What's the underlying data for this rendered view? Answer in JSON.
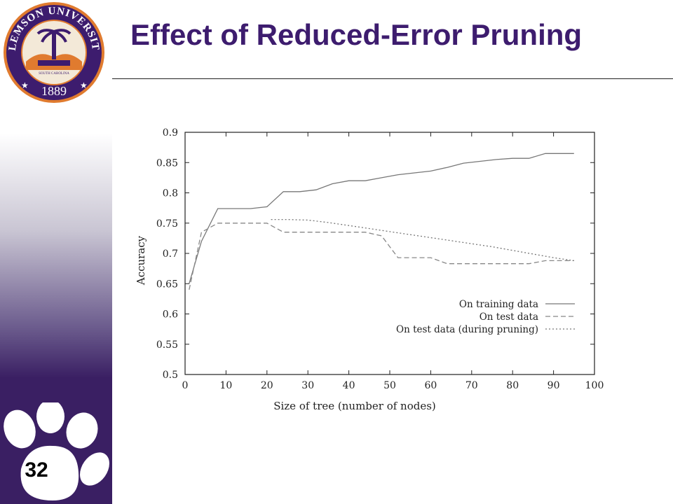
{
  "slide": {
    "title": "Effect of Reduced-Error Pruning",
    "number": "32",
    "logo": {
      "ring_text": "CLEMSON UNIVERSITY",
      "inner_text": "SOUTH CAROLINA",
      "year": "1889"
    },
    "colors": {
      "purple": "#3d1c6e",
      "orange": "#e07b2f"
    }
  },
  "chart_data": {
    "type": "line",
    "title": "",
    "xlabel": "Size of tree (number of nodes)",
    "ylabel": "Accuracy",
    "xlim": [
      0,
      100
    ],
    "ylim": [
      0.5,
      0.9
    ],
    "xticks": [
      "0",
      "10",
      "20",
      "30",
      "40",
      "50",
      "60",
      "70",
      "80",
      "90",
      "100"
    ],
    "yticks": [
      "0.5",
      "0.55",
      "0.6",
      "0.65",
      "0.7",
      "0.75",
      "0.8",
      "0.85",
      "0.9"
    ],
    "grid": false,
    "legend_position": "bottom-right",
    "series": [
      {
        "name": "On training data",
        "style": "solid",
        "x": [
          1,
          4,
          8,
          12,
          16,
          20,
          24,
          28,
          32,
          36,
          40,
          44,
          48,
          52,
          56,
          60,
          64,
          68,
          72,
          76,
          80,
          84,
          88,
          92,
          95
        ],
        "y": [
          0.65,
          0.72,
          0.774,
          0.774,
          0.774,
          0.777,
          0.802,
          0.802,
          0.805,
          0.815,
          0.82,
          0.82,
          0.825,
          0.83,
          0.833,
          0.836,
          0.842,
          0.849,
          0.852,
          0.855,
          0.857,
          0.857,
          0.865,
          0.865,
          0.865
        ]
      },
      {
        "name": "On test data",
        "style": "dashed",
        "x": [
          1,
          4,
          8,
          12,
          16,
          20,
          24,
          28,
          32,
          36,
          40,
          44,
          48,
          52,
          56,
          60,
          64,
          68,
          72,
          76,
          80,
          84,
          88,
          92,
          95
        ],
        "y": [
          0.64,
          0.735,
          0.75,
          0.75,
          0.75,
          0.75,
          0.735,
          0.735,
          0.735,
          0.735,
          0.735,
          0.735,
          0.729,
          0.693,
          0.693,
          0.693,
          0.683,
          0.683,
          0.683,
          0.683,
          0.683,
          0.683,
          0.688,
          0.688,
          0.688
        ]
      },
      {
        "name": "On test data (during pruning)",
        "style": "dotted",
        "x": [
          21,
          25,
          30,
          35,
          40,
          45,
          50,
          55,
          60,
          65,
          70,
          75,
          80,
          85,
          90,
          95
        ],
        "y": [
          0.756,
          0.756,
          0.755,
          0.751,
          0.746,
          0.741,
          0.736,
          0.731,
          0.726,
          0.721,
          0.716,
          0.711,
          0.705,
          0.699,
          0.693,
          0.688
        ]
      }
    ]
  }
}
